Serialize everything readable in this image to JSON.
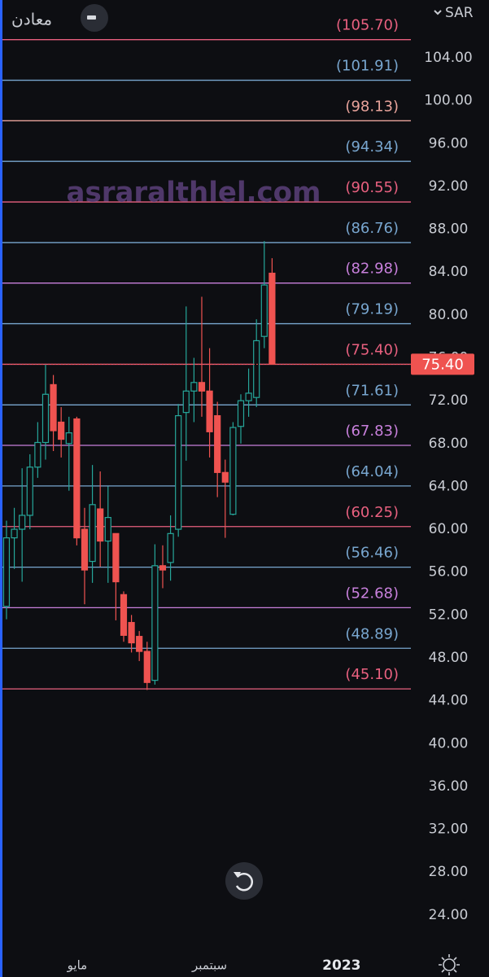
{
  "chart_data": {
    "type": "candlestick",
    "title": "معادن",
    "currency": "SAR",
    "watermark": "asraralthlel.com",
    "x": [
      0,
      1,
      2,
      3,
      4,
      5,
      6,
      7,
      8,
      9,
      10,
      11,
      12,
      13,
      14,
      15,
      16,
      17,
      18,
      19,
      20,
      21,
      22,
      23,
      24,
      25,
      26,
      27,
      28,
      29,
      30,
      31,
      32,
      33,
      34
    ],
    "open": [
      52.8,
      59.2,
      60.0,
      61.3,
      65.8,
      68.1,
      73.5,
      70.0,
      68.0,
      70.3,
      60.0,
      57.0,
      61.9,
      58.9,
      59.6,
      53.9,
      51.3,
      50.0,
      48.6,
      45.9,
      56.6,
      56.9,
      60.0,
      70.9,
      72.9,
      73.7,
      72.9,
      70.6,
      65.3,
      61.4,
      69.6,
      72.0,
      72.3,
      78.0,
      83.9
    ],
    "high": [
      60.8,
      62.0,
      65.7,
      67.0,
      70.0,
      75.4,
      74.4,
      71.4,
      70.5,
      70.5,
      62.0,
      66.0,
      65.4,
      64.0,
      59.6,
      54.2,
      52.0,
      50.5,
      49.5,
      58.6,
      58.5,
      61.3,
      71.7,
      80.8,
      76.0,
      81.7,
      76.9,
      71.9,
      66.5,
      70.0,
      72.6,
      75.0,
      79.6,
      86.9,
      85.3
    ],
    "low": [
      51.6,
      56.3,
      55.1,
      60.0,
      64.8,
      66.5,
      67.3,
      66.7,
      63.6,
      58.5,
      53.0,
      55.0,
      56.5,
      55.0,
      51.5,
      49.5,
      48.5,
      47.7,
      45.0,
      45.5,
      54.5,
      55.2,
      59.3,
      66.4,
      70.0,
      70.5,
      66.7,
      63.0,
      59.2,
      61.3,
      68.0,
      70.5,
      71.4,
      76.9,
      75.4
    ],
    "close": [
      59.2,
      60.0,
      61.3,
      65.8,
      68.1,
      72.6,
      69.2,
      68.4,
      69.0,
      59.2,
      56.2,
      62.3,
      58.9,
      61.1,
      55.1,
      50.1,
      49.4,
      48.6,
      45.7,
      56.6,
      56.2,
      59.6,
      70.6,
      72.9,
      73.7,
      72.9,
      69.1,
      65.3,
      64.4,
      69.5,
      72.0,
      72.7,
      77.6,
      82.8,
      75.4
    ],
    "colors": {
      "up": "#26a69a",
      "down": "#ef5350"
    },
    "last_price_label": "75.40",
    "xlim": [
      -0.83,
      51.77
    ],
    "xticks": [
      {
        "value": 9.06,
        "label": "مايو"
      },
      {
        "value": 26.0,
        "label": "سبتمبر"
      },
      {
        "value": 42.9,
        "label": "2023"
      }
    ],
    "ylim": [
      21.25,
      109.4
    ],
    "yticks": [
      {
        "value": 104,
        "label": "104.00"
      },
      {
        "value": 100,
        "label": "100.00"
      },
      {
        "value": 96,
        "label": "96.00"
      },
      {
        "value": 92,
        "label": "92.00"
      },
      {
        "value": 88,
        "label": "88.00"
      },
      {
        "value": 84,
        "label": "84.00"
      },
      {
        "value": 80,
        "label": "80.00"
      },
      {
        "value": 76,
        "label": "76.00"
      },
      {
        "value": 72,
        "label": "72.00"
      },
      {
        "value": 68,
        "label": "68.00"
      },
      {
        "value": 64,
        "label": "64.00"
      },
      {
        "value": 60,
        "label": "60.00"
      },
      {
        "value": 56,
        "label": "56.00"
      },
      {
        "value": 52,
        "label": "52.00"
      },
      {
        "value": 48,
        "label": "48.00"
      },
      {
        "value": 44,
        "label": "44.00"
      },
      {
        "value": 40,
        "label": "40.00"
      },
      {
        "value": 36,
        "label": "36.00"
      },
      {
        "value": 32,
        "label": "32.00"
      },
      {
        "value": 28,
        "label": "28.00"
      },
      {
        "value": 24,
        "label": "24.00"
      }
    ],
    "levels": [
      {
        "value": 105.7,
        "label": "(105.70)",
        "color": "#e8607f"
      },
      {
        "value": 101.91,
        "label": "(101.91)",
        "color": "#78a6cf"
      },
      {
        "value": 98.13,
        "label": "(98.13)",
        "color": "#e8a39b"
      },
      {
        "value": 94.34,
        "label": "(94.34)",
        "color": "#78a6cf"
      },
      {
        "value": 90.55,
        "label": "(90.55)",
        "color": "#e8607f"
      },
      {
        "value": 86.76,
        "label": "(86.76)",
        "color": "#78a6cf"
      },
      {
        "value": 82.98,
        "label": "(82.98)",
        "color": "#c880dc"
      },
      {
        "value": 79.19,
        "label": "(79.19)",
        "color": "#78a6cf"
      },
      {
        "value": 75.4,
        "label": "(75.40)",
        "color": "#e8607f"
      },
      {
        "value": 71.61,
        "label": "(71.61)",
        "color": "#78a6cf"
      },
      {
        "value": 67.83,
        "label": "(67.83)",
        "color": "#c880dc"
      },
      {
        "value": 64.04,
        "label": "(64.04)",
        "color": "#78a6cf"
      },
      {
        "value": 60.25,
        "label": "(60.25)",
        "color": "#e8607f"
      },
      {
        "value": 56.46,
        "label": "(56.46)",
        "color": "#78a6cf"
      },
      {
        "value": 52.68,
        "label": "(52.68)",
        "color": "#c880dc"
      },
      {
        "value": 48.89,
        "label": "(48.89)",
        "color": "#78a6cf"
      },
      {
        "value": 45.1,
        "label": "(45.10)",
        "color": "#e8607f"
      }
    ]
  }
}
